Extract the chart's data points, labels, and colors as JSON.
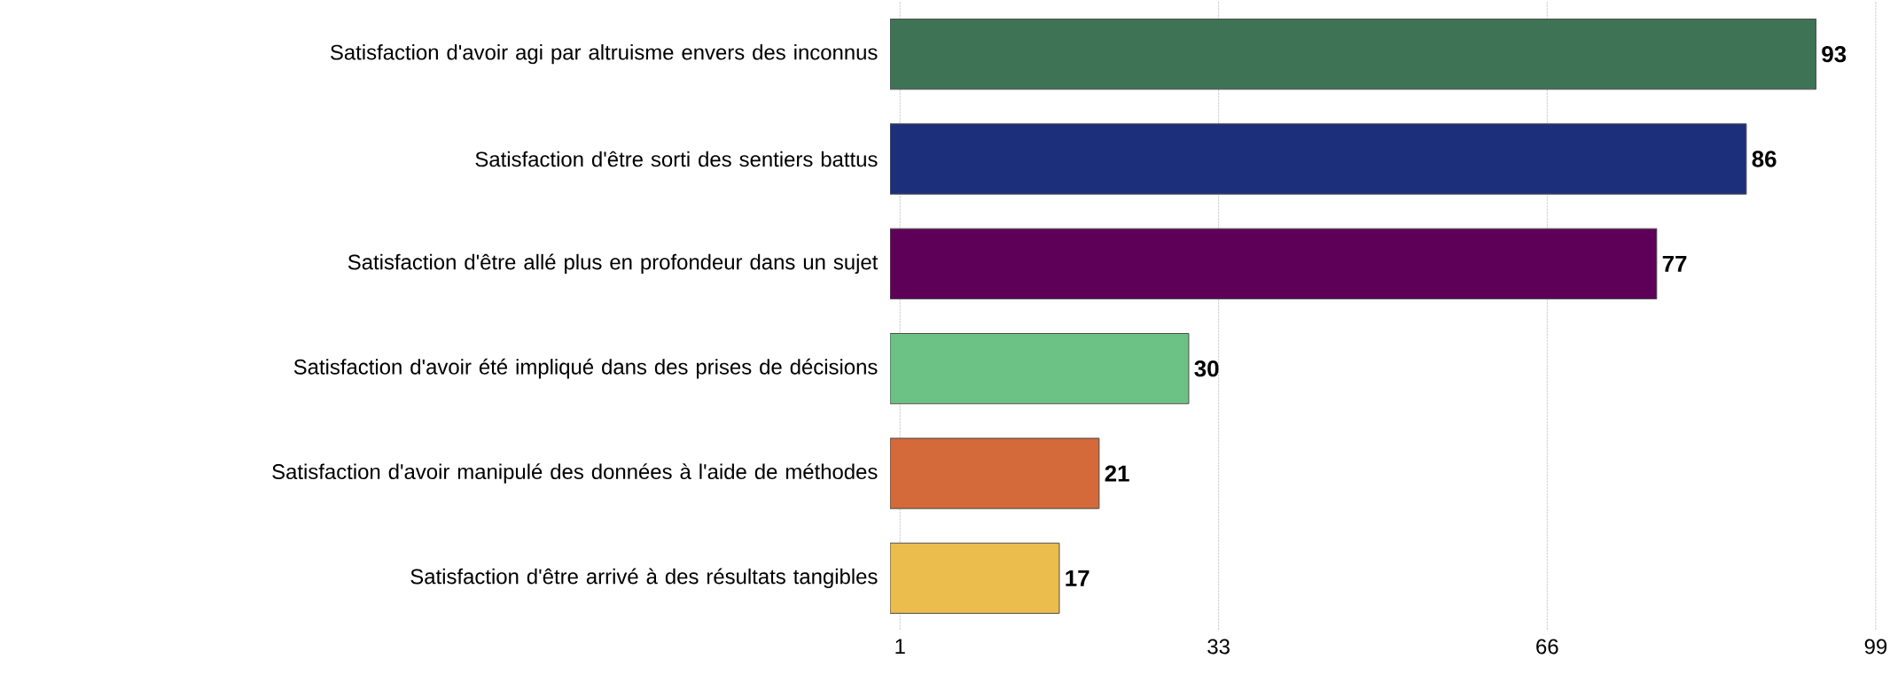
{
  "chart_data": {
    "type": "bar",
    "orientation": "horizontal",
    "categories": [
      "Satisfaction d'avoir agi par altruisme envers des inconnus",
      "Satisfaction d'être sorti des sentiers battus",
      "Satisfaction d'être allé plus en profondeur dans un sujet",
      "Satisfaction d'avoir été impliqué dans des prises de décisions",
      "Satisfaction d'avoir manipulé des données à l'aide de méthodes",
      "Satisfaction d'être arrivé à des résultats tangibles"
    ],
    "values": [
      93,
      86,
      77,
      30,
      21,
      17
    ],
    "colors": [
      "#3f7355",
      "#1c2f7a",
      "#5e0058",
      "#6cc285",
      "#d4693a",
      "#ebbd4d"
    ],
    "xlim": [
      0,
      99
    ],
    "xticks": [
      1,
      33,
      66,
      99
    ],
    "grid": "x",
    "data_labels": true
  }
}
